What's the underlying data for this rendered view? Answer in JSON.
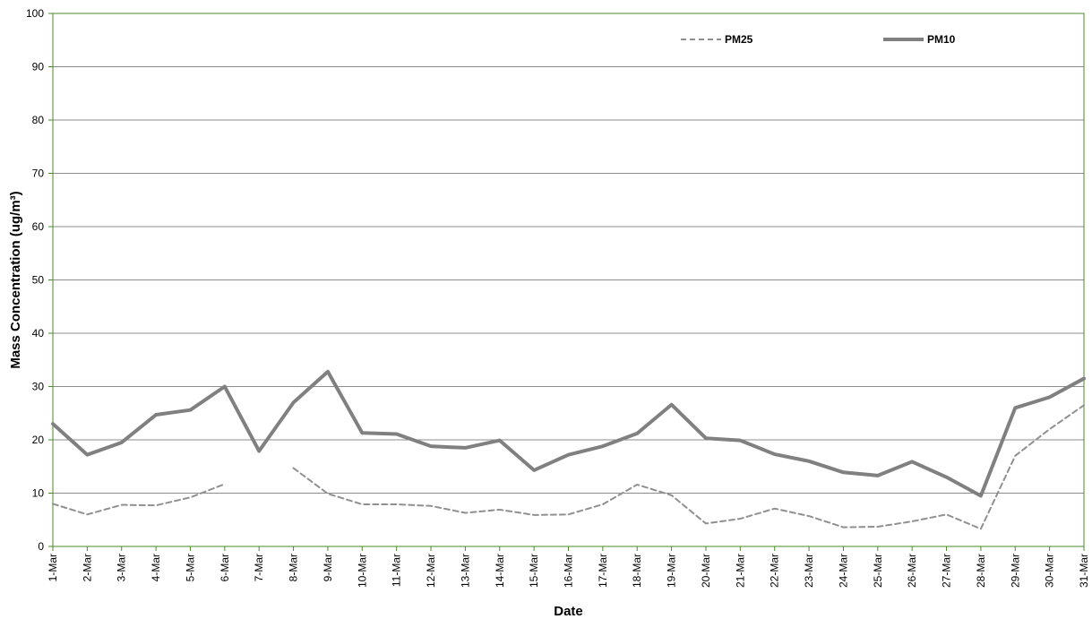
{
  "chart_data": {
    "type": "line",
    "title": "",
    "xlabel": "Date",
    "ylabel": "Mass Concentration (ug/m³)",
    "ylim": [
      0,
      100
    ],
    "yticks": [
      "0",
      "10",
      "20",
      "30",
      "40",
      "50",
      "60",
      "70",
      "80",
      "90",
      "100"
    ],
    "categories": [
      "1-Mar",
      "2-Mar",
      "3-Mar",
      "4-Mar",
      "5-Mar",
      "6-Mar",
      "7-Mar",
      "8-Mar",
      "9-Mar",
      "10-Mar",
      "11-Mar",
      "12-Mar",
      "13-Mar",
      "14-Mar",
      "15-Mar",
      "16-Mar",
      "17-Mar",
      "18-Mar",
      "19-Mar",
      "20-Mar",
      "21-Mar",
      "22-Mar",
      "23-Mar",
      "24-Mar",
      "25-Mar",
      "26-Mar",
      "27-Mar",
      "28-Mar",
      "29-Mar",
      "30-Mar",
      "31-Mar"
    ],
    "grid": true,
    "legend_position": "top-right",
    "series": [
      {
        "name": "PM25",
        "style": "dashed",
        "color": "#909090",
        "values": [
          8.0,
          6.0,
          7.8,
          7.7,
          9.2,
          11.7,
          null,
          14.7,
          9.9,
          7.9,
          7.9,
          7.6,
          6.3,
          6.9,
          5.9,
          6.0,
          7.9,
          11.6,
          9.6,
          4.3,
          5.2,
          7.1,
          5.7,
          3.6,
          3.7,
          4.7,
          6.0,
          3.3,
          17.0,
          22.0,
          26.5
        ]
      },
      {
        "name": "PM10",
        "style": "solid",
        "color": "#808080",
        "values": [
          23.0,
          17.2,
          19.5,
          24.7,
          25.6,
          30.0,
          17.9,
          27.0,
          32.8,
          21.3,
          21.1,
          18.8,
          18.5,
          19.9,
          14.3,
          17.2,
          18.8,
          21.2,
          26.6,
          20.3,
          19.9,
          17.3,
          16.0,
          13.9,
          13.3,
          15.9,
          13.0,
          9.5,
          26.0,
          28.0,
          31.5
        ]
      }
    ]
  }
}
